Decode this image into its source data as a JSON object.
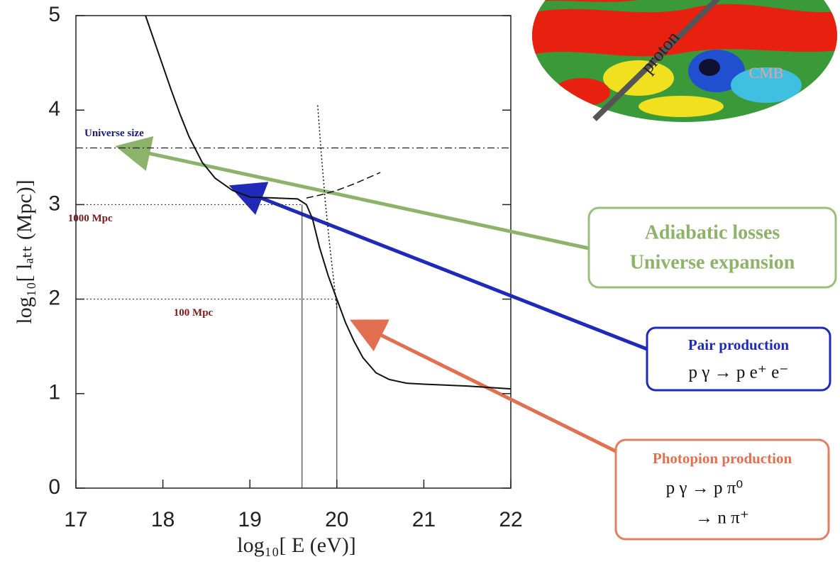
{
  "chart_data": {
    "type": "line",
    "xlabel": "log₁₀[ E (eV)]",
    "ylabel": "log₁₀[ lₐₜₜ (Mpc)]",
    "xlim": [
      17,
      22
    ],
    "ylim": [
      0,
      5
    ],
    "xticks": [
      17,
      18,
      19,
      20,
      21,
      22
    ],
    "yticks": [
      0,
      1,
      2,
      3,
      4,
      5
    ],
    "series": [
      {
        "style": "solid",
        "color": "#111111",
        "x": [
          17.8,
          17.95,
          18.1,
          18.2,
          18.3,
          18.45,
          18.6,
          18.8,
          19.0,
          19.3,
          19.55,
          19.65,
          19.72,
          19.8,
          19.9,
          20.0,
          20.1,
          20.2,
          20.3,
          20.45,
          20.6,
          20.8,
          21.0,
          21.5,
          22.0
        ],
        "values": [
          5.0,
          4.6,
          4.2,
          3.95,
          3.72,
          3.45,
          3.28,
          3.15,
          3.08,
          3.07,
          3.06,
          3.0,
          2.85,
          2.55,
          2.25,
          2.0,
          1.75,
          1.55,
          1.38,
          1.22,
          1.15,
          1.11,
          1.1,
          1.08,
          1.05
        ]
      },
      {
        "style": "dashed",
        "color": "#111111",
        "x": [
          19.65,
          19.8,
          20.0,
          20.2,
          20.35,
          20.5
        ],
        "values": [
          3.07,
          3.1,
          3.15,
          3.22,
          3.28,
          3.34
        ]
      },
      {
        "style": "dotted",
        "color": "#111111",
        "x": [
          19.78,
          19.82,
          19.87,
          19.92,
          19.97,
          20.0
        ],
        "values": [
          4.05,
          3.55,
          3.0,
          2.55,
          2.15,
          1.9
        ]
      }
    ],
    "reference_lines": [
      {
        "label": "Universe  size",
        "y": 3.6,
        "color": "#1a1a7a"
      },
      {
        "label": "1000 Mpc",
        "y": 3,
        "x": 19.6,
        "color": "#7a1a1a"
      },
      {
        "label": "100 Mpc",
        "y": 2,
        "x": 20,
        "color": "#7a1a1a"
      }
    ],
    "annotations": [
      {
        "lines": [
          "Adiabatic losses",
          "Universe expansion"
        ],
        "color": "#8db36a"
      },
      {
        "lines": [
          "Pair production",
          "p γ →  p e⁺ e⁻"
        ],
        "color": "#1f2bb8"
      },
      {
        "lines": [
          "Photopion production",
          "p γ → p π⁰",
          "→ n π⁺"
        ],
        "color": "#e07050"
      }
    ],
    "image_labels": [
      "proton",
      "CMB"
    ]
  }
}
